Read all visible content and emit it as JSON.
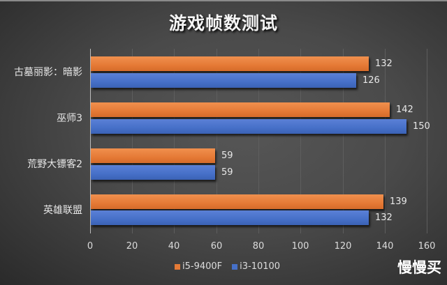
{
  "chart_data": {
    "type": "bar",
    "orientation": "horizontal",
    "title": "游戏帧数测试",
    "categories": [
      "古墓丽影：暗影",
      "巫师3",
      "荒野大镖客2",
      "英雄联盟"
    ],
    "series": [
      {
        "name": "i5-9400F",
        "color": "#e57a36",
        "values": [
          132,
          142,
          59,
          139
        ]
      },
      {
        "name": "i3-10100",
        "color": "#4670c8",
        "values": [
          126,
          150,
          59,
          132
        ]
      }
    ],
    "xlabel": "",
    "ylabel": "",
    "xlim": [
      0,
      160
    ],
    "xticks": [
      0,
      20,
      40,
      60,
      80,
      100,
      120,
      140,
      160
    ],
    "grid": true,
    "legend_position": "bottom",
    "data_labels": true
  },
  "title": "游戏帧数测试",
  "categories": [
    "古墓丽影：暗影",
    "巫师3",
    "荒野大镖客2",
    "英雄联盟"
  ],
  "legend": {
    "items": [
      {
        "label": "i5-9400F",
        "color": "#e57a36"
      },
      {
        "label": "i3-10100",
        "color": "#4670c8"
      }
    ]
  },
  "ticks": [
    "0",
    "20",
    "40",
    "60",
    "80",
    "100",
    "120",
    "140",
    "160"
  ],
  "watermark": "慢慢买"
}
